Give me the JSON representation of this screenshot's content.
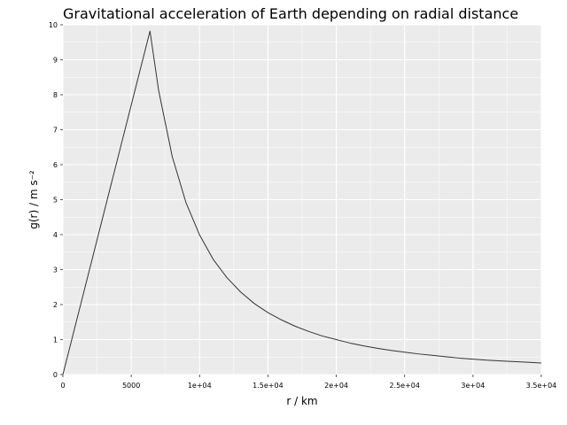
{
  "chart_data": {
    "type": "line",
    "title": "Gravitational acceleration of Earth depending on radial distance",
    "xlabel": "r / km",
    "ylabel": "g(r) / m s⁻²",
    "xlim": [
      0,
      35000
    ],
    "ylim": [
      0,
      10
    ],
    "x_ticks": [
      0,
      5000,
      10000,
      15000,
      20000,
      25000,
      30000,
      35000
    ],
    "x_tick_labels": [
      "0",
      "5000",
      "1e+04",
      "1.5e+04",
      "2e+04",
      "2.5e+04",
      "3e+04",
      "3.5e+04"
    ],
    "y_ticks": [
      0,
      1,
      2,
      3,
      4,
      5,
      6,
      7,
      8,
      9,
      10
    ],
    "y_tick_labels": [
      "0",
      "1",
      "2",
      "3",
      "4",
      "5",
      "6",
      "7",
      "8",
      "9",
      "10"
    ],
    "grid": true,
    "series": [
      {
        "x": [
          0,
          6371,
          7000,
          8000,
          9000,
          10000,
          11000,
          12000,
          13000,
          14000,
          15000,
          16000,
          17000,
          18000,
          19000,
          20000,
          21000,
          22000,
          23000,
          24000,
          25000,
          26000,
          27000,
          28000,
          29000,
          30000,
          31000,
          32000,
          33000,
          34000,
          35000
        ],
        "y": [
          0,
          9.82,
          8.13,
          6.23,
          4.92,
          3.99,
          3.29,
          2.77,
          2.36,
          2.03,
          1.77,
          1.56,
          1.38,
          1.23,
          1.1,
          1.0,
          0.9,
          0.82,
          0.75,
          0.69,
          0.64,
          0.59,
          0.55,
          0.51,
          0.47,
          0.44,
          0.41,
          0.39,
          0.37,
          0.35,
          0.33
        ],
        "color": "#333333"
      }
    ],
    "colors": {
      "panel": "#ebebeb",
      "grid": "#ffffff",
      "line": "#333333"
    }
  }
}
